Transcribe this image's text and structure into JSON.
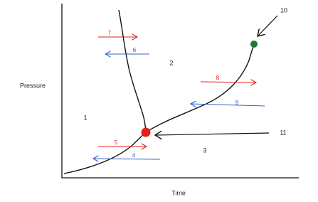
{
  "axes": {
    "y_label": "Pressure",
    "x_label": "Time"
  },
  "region_labels": [
    "1",
    "2",
    "3"
  ],
  "arrow_labels": [
    "4",
    "5",
    "6",
    "7",
    "8",
    "9"
  ],
  "point_labels": [
    "10",
    "11"
  ]
}
